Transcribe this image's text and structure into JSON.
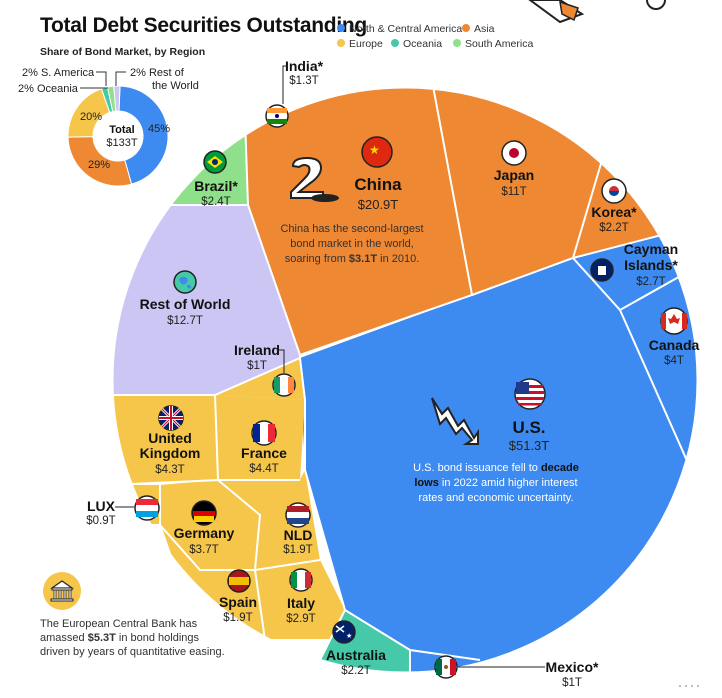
{
  "title": "Total Debt Securities Outstanding",
  "colors": {
    "north_central_america": "#3d8af0",
    "asia": "#ee8833",
    "europe": "#f5c64a",
    "oceania": "#46c9a8",
    "south_america": "#8ee08a",
    "rest_of_world": "#cbc6f3"
  },
  "legend": [
    {
      "label": "North & Central America",
      "color": "#3d8af0"
    },
    {
      "label": "Asia",
      "color": "#ee8833"
    },
    {
      "label": "Europe",
      "color": "#f5c64a"
    },
    {
      "label": "Oceania",
      "color": "#46c9a8"
    },
    {
      "label": "South America",
      "color": "#8ee08a"
    }
  ],
  "donut": {
    "subtitle": "Share of Bond Market, by Region",
    "center_label": "Total",
    "center_value": "$133T",
    "slice_labels": [
      {
        "text": "45%"
      },
      {
        "text": "29%"
      },
      {
        "text": "20%"
      },
      {
        "text": "2% Oceania"
      },
      {
        "text": "2% S. America"
      },
      {
        "text": "2% Rest of"
      },
      {
        "text": "the World"
      }
    ]
  },
  "chart_data": [
    {
      "type": "pie",
      "title": "",
      "categories": [
        "North & Central America",
        "Asia",
        "Europe",
        "Oceania",
        "South America",
        "Rest of the World"
      ],
      "values": [
        45,
        29,
        20,
        2,
        2,
        2
      ],
      "center": "$133T"
    },
    {
      "type": "voronoi-treemap",
      "cells": [
        {
          "name": "U.S.",
          "value": "$51.3T",
          "region": "North & Central America"
        },
        {
          "name": "Canada",
          "value": "$4T",
          "region": "North & Central America"
        },
        {
          "name": "Cayman Islands*",
          "value": "$2.7T",
          "region": "North & Central America"
        },
        {
          "name": "Mexico*",
          "value": "$1T",
          "region": "North & Central America"
        },
        {
          "name": "China",
          "value": "$20.9T",
          "region": "Asia"
        },
        {
          "name": "Japan",
          "value": "$11T",
          "region": "Asia"
        },
        {
          "name": "Korea*",
          "value": "$2.2T",
          "region": "Asia"
        },
        {
          "name": "India*",
          "value": "$1.3T",
          "region": "Asia"
        },
        {
          "name": "United Kingdom",
          "value": "$4.3T",
          "region": "Europe"
        },
        {
          "name": "France",
          "value": "$4.4T",
          "region": "Europe"
        },
        {
          "name": "Germany",
          "value": "$3.7T",
          "region": "Europe"
        },
        {
          "name": "Italy",
          "value": "$2.9T",
          "region": "Europe"
        },
        {
          "name": "Spain",
          "value": "$1.9T",
          "region": "Europe"
        },
        {
          "name": "NLD",
          "value": "$1.9T",
          "region": "Europe"
        },
        {
          "name": "Ireland",
          "value": "$1T",
          "region": "Europe"
        },
        {
          "name": "LUX",
          "value": "$0.9T",
          "region": "Europe"
        },
        {
          "name": "Australia",
          "value": "$2.2T",
          "region": "Oceania"
        },
        {
          "name": "Brazil*",
          "value": "$2.4T",
          "region": "South America"
        },
        {
          "name": "Rest of World",
          "value": "$12.7T",
          "region": "Rest of the World"
        }
      ]
    }
  ],
  "labels": {
    "us": {
      "name": "U.S.",
      "value": "$51.3T"
    },
    "china": {
      "name": "China",
      "value": "$20.9T"
    },
    "japan": {
      "name": "Japan",
      "value": "$11T"
    },
    "korea": {
      "name": "Korea*",
      "value": "$2.2T"
    },
    "india": {
      "name": "India*",
      "value": "$1.3T"
    },
    "cayman_1": "Cayman",
    "cayman_2": "Islands*",
    "cayman_val": "$2.7T",
    "canada": {
      "name": "Canada",
      "value": "$4T"
    },
    "mexico": {
      "name": "Mexico*",
      "value": "$1T"
    },
    "brazil": {
      "name": "Brazil*",
      "value": "$2.4T"
    },
    "row": {
      "name": "Rest of World",
      "value": "$12.7T"
    },
    "ireland": {
      "name": "Ireland",
      "value": "$1T"
    },
    "uk_1": "United",
    "uk_2": "Kingdom",
    "uk_val": "$4.3T",
    "france": {
      "name": "France",
      "value": "$4.4T"
    },
    "lux": {
      "name": "LUX",
      "value": "$0.9T"
    },
    "germany": {
      "name": "Germany",
      "value": "$3.7T"
    },
    "nld": {
      "name": "NLD",
      "value": "$1.9T"
    },
    "spain": {
      "name": "Spain",
      "value": "$1.9T"
    },
    "italy": {
      "name": "Italy",
      "value": "$2.9T"
    },
    "australia": {
      "name": "Australia",
      "value": "$2.2T"
    }
  },
  "notes": {
    "china_1": "China has the second-largest",
    "china_2": "bond market in the world,",
    "china_3a": "soaring from ",
    "china_3b": "$3.1T",
    "china_3c": " in 2010.",
    "us_1a": "U.S. bond issuance fell to ",
    "us_1b": "decade",
    "us_2a": "lows",
    "us_2b": " in 2022 amid higher interest",
    "us_3": "rates and economic uncertainty.",
    "ecb_1": "The European Central Bank has",
    "ecb_2a": "amassed ",
    "ecb_2b": "$5.3T",
    "ecb_2c": " in bond holdings",
    "ecb_3": "driven by years of quantitative easing."
  }
}
